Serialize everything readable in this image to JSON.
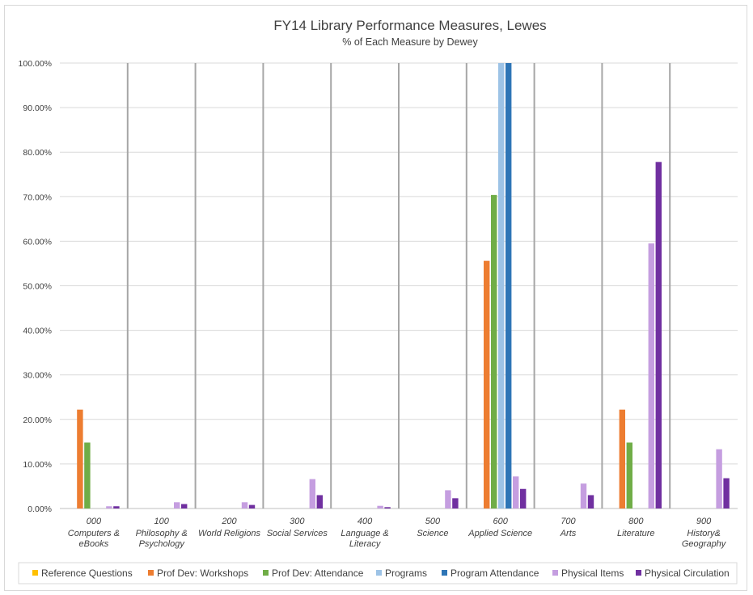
{
  "chart_data": {
    "type": "bar",
    "title": "FY14 Library Performance Measures, Lewes",
    "subtitle": "% of Each Measure by Dewey",
    "xlabel": "",
    "ylabel": "",
    "ylim": [
      0,
      100
    ],
    "y_ticks": [
      "0.00%",
      "10.00%",
      "20.00%",
      "30.00%",
      "40.00%",
      "50.00%",
      "60.00%",
      "70.00%",
      "80.00%",
      "90.00%",
      "100.00%"
    ],
    "grid": true,
    "legend_position": "bottom",
    "categories": [
      {
        "code": "000",
        "name": [
          "Computers &",
          "eBooks"
        ]
      },
      {
        "code": "100",
        "name": [
          "Philosophy &",
          "Psychology"
        ]
      },
      {
        "code": "200",
        "name": [
          "World Religions"
        ]
      },
      {
        "code": "300",
        "name": [
          "Social Services"
        ]
      },
      {
        "code": "400",
        "name": [
          "Language &",
          "Literacy"
        ]
      },
      {
        "code": "500",
        "name": [
          "Science"
        ]
      },
      {
        "code": "600",
        "name": [
          "Applied Science"
        ]
      },
      {
        "code": "700",
        "name": [
          "Arts"
        ]
      },
      {
        "code": "800",
        "name": [
          "Literature"
        ]
      },
      {
        "code": "900",
        "name": [
          "History&",
          "Geography"
        ]
      }
    ],
    "series": [
      {
        "name": "Reference Questions",
        "color": "#ffc000",
        "values": [
          0,
          0,
          0,
          0,
          0,
          0,
          0,
          0,
          0,
          0
        ]
      },
      {
        "name": "Prof Dev: Workshops",
        "color": "#ed7d31",
        "values": [
          22.2,
          0,
          0,
          0,
          0,
          0,
          55.6,
          0,
          22.2,
          0
        ]
      },
      {
        "name": "Prof Dev: Attendance",
        "color": "#70ad47",
        "values": [
          14.8,
          0,
          0,
          0,
          0,
          0,
          70.4,
          0,
          14.8,
          0
        ]
      },
      {
        "name": "Programs",
        "color": "#9dc3e6",
        "values": [
          0,
          0,
          0,
          0,
          0,
          0,
          100,
          0,
          0,
          0
        ]
      },
      {
        "name": "Program Attendance",
        "color": "#2e75b6",
        "values": [
          0,
          0,
          0,
          0,
          0,
          0,
          100,
          0,
          0,
          0
        ]
      },
      {
        "name": "Physical Items",
        "color": "#c59ee0",
        "values": [
          0.5,
          1.4,
          1.4,
          6.6,
          0.6,
          4.1,
          7.2,
          5.6,
          59.5,
          13.3
        ]
      },
      {
        "name": "Physical Circulation",
        "color": "#7030a0",
        "values": [
          0.5,
          1.0,
          0.8,
          3.0,
          0.3,
          2.3,
          4.4,
          3.0,
          77.8,
          6.8
        ]
      }
    ]
  }
}
